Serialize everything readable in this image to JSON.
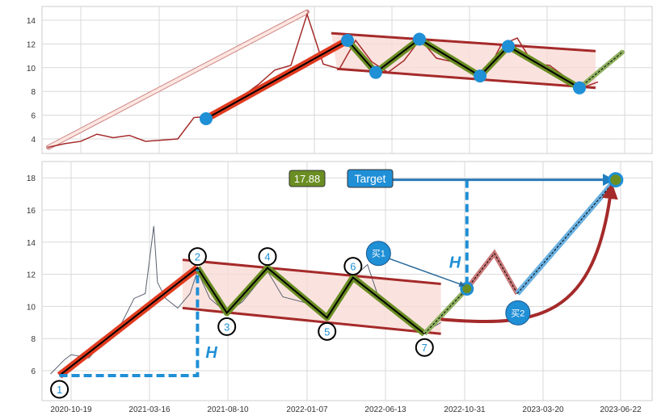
{
  "chart_data": [
    {
      "type": "line",
      "panel": "top",
      "grid": true,
      "yticks": [
        4,
        6,
        8,
        10,
        12,
        14
      ],
      "ylim": [
        2.8,
        15.2
      ],
      "x_unit": "step",
      "series_color": "#a52a2a",
      "price": [
        3.3,
        3.6,
        3.8,
        4.4,
        4.1,
        4.3,
        3.8,
        3.9,
        4.0,
        5.8,
        5.9,
        6.8,
        7.6,
        8.6,
        9.8,
        10.2,
        14.5,
        10.3,
        9.9,
        12.3,
        10.5,
        9.6,
        10.6,
        12.4,
        10.8,
        10.5,
        10.0,
        9.3,
        11.9,
        12.5,
        10.3,
        10.2,
        9.2,
        8.3,
        8.8
      ],
      "impulse_arrow": [
        [
          0,
          3.3
        ],
        [
          16,
          14.7
        ]
      ],
      "impulse_line": [
        [
          9.75,
          5.7
        ],
        [
          18.5,
          12.3
        ]
      ],
      "zigzag": [
        [
          18.5,
          12.3
        ],
        [
          20.25,
          9.6
        ],
        [
          22.95,
          12.4
        ],
        [
          26.7,
          9.3
        ],
        [
          28.45,
          11.8
        ],
        [
          32.85,
          8.3
        ]
      ],
      "projection": [
        [
          32.85,
          8.3
        ],
        [
          35.5,
          11.3
        ]
      ],
      "pivots": [
        [
          9.75,
          5.7
        ],
        [
          18.5,
          12.3
        ],
        [
          20.25,
          9.6
        ],
        [
          22.95,
          12.4
        ],
        [
          26.7,
          9.3
        ],
        [
          28.45,
          11.8
        ],
        [
          32.85,
          8.3
        ]
      ],
      "channel_upper": [
        [
          17.5,
          12.9
        ],
        [
          33.85,
          11.4
        ]
      ],
      "channel_lower": [
        [
          17.85,
          9.9
        ],
        [
          33.85,
          8.3
        ]
      ]
    },
    {
      "type": "line",
      "panel": "bottom",
      "grid": true,
      "xticks": [
        "2020-10-19",
        "2021-03-16",
        "2021-08-10",
        "2022-01-07",
        "2022-06-13",
        "2022-10-31",
        "2023-03-20",
        "2023-06-22"
      ],
      "yticks": [
        6,
        8,
        10,
        12,
        14,
        16,
        18
      ],
      "ylim": [
        4.1,
        19.0
      ],
      "price": [
        [
          "2020-09-10",
          5.8
        ],
        [
          "2020-10-07",
          6.7
        ],
        [
          "2020-10-19",
          7.0
        ],
        [
          "2020-11-22",
          6.8
        ],
        [
          "2020-12-23",
          8.0
        ],
        [
          "2021-01-23",
          9.0
        ],
        [
          "2021-02-15",
          10.5
        ],
        [
          "2021-03-08",
          10.8
        ],
        [
          "2021-03-24",
          15.0
        ],
        [
          "2021-03-31",
          11.5
        ],
        [
          "2021-04-15",
          10.5
        ],
        [
          "2021-05-08",
          9.9
        ],
        [
          "2021-05-31",
          10.8
        ],
        [
          "2021-06-14",
          12.2
        ],
        [
          "2021-07-07",
          10.5
        ],
        [
          "2021-08-08",
          9.6
        ],
        [
          "2021-09-07",
          10.3
        ],
        [
          "2021-10-24",
          12.2
        ],
        [
          "2021-11-22",
          10.6
        ],
        [
          "2022-01-07",
          10.2
        ],
        [
          "2022-02-16",
          9.3
        ],
        [
          "2022-04-09",
          11.8
        ],
        [
          "2022-05-08",
          12.6
        ],
        [
          "2022-06-02",
          10.3
        ],
        [
          "2022-07-02",
          9.8
        ],
        [
          "2022-07-31",
          8.9
        ],
        [
          "2022-08-21",
          8.4
        ],
        [
          "2022-09-19",
          9.0
        ]
      ],
      "pivots": [
        {
          "label": "1",
          "date": "2020-09-27",
          "value": 5.7,
          "pos": "below"
        },
        {
          "label": "2",
          "date": "2021-06-14",
          "value": 12.4,
          "pos": "above"
        },
        {
          "label": "3",
          "date": "2021-08-08",
          "value": 9.6,
          "pos": "below"
        },
        {
          "label": "4",
          "date": "2021-10-24",
          "value": 12.4,
          "pos": "above"
        },
        {
          "label": "5",
          "date": "2022-02-16",
          "value": 9.3,
          "pos": "below"
        },
        {
          "label": "6",
          "date": "2022-04-09",
          "value": 11.8,
          "pos": "above"
        },
        {
          "label": "7",
          "date": "2022-08-21",
          "value": 8.3,
          "pos": "below"
        }
      ],
      "breakout": [
        [
          "2022-08-21",
          8.3
        ],
        [
          "2022-11-04",
          11.1
        ]
      ],
      "retest": [
        [
          "2022-11-04",
          11.1
        ],
        [
          "2022-12-23",
          13.3
        ],
        [
          "2023-02-02",
          10.8
        ]
      ],
      "target_line": [
        [
          "2023-02-02",
          10.8
        ],
        [
          "2023-06-16",
          17.88
        ]
      ],
      "curve": [
        [
          "2022-09-19",
          9.2
        ],
        [
          "2023-06-11",
          17.5
        ]
      ],
      "channel_upper": [
        [
          "2021-05-17",
          12.9
        ],
        [
          "2022-09-19",
          11.4
        ]
      ],
      "channel_lower": [
        [
          "2021-05-17",
          9.9
        ],
        [
          "2022-09-19",
          8.3
        ]
      ],
      "height_left": {
        "from": [
          "2020-09-27",
          5.7
        ],
        "corner": [
          "2021-06-14",
          5.7
        ],
        "to": [
          "2021-06-14",
          12.3
        ],
        "label": "H"
      },
      "height_right": {
        "date": "2022-11-04",
        "from": 17.88,
        "to": 11.2,
        "label": "H"
      },
      "target_value": "17.88",
      "target_label": "Target",
      "target_arrow": [
        [
          "2022-06-26",
          17.88
        ],
        [
          "2023-06-16",
          17.88
        ]
      ],
      "buy1": {
        "label": "买1",
        "date": "2022-05-30",
        "value": 13.3,
        "points_to": [
          "2022-10-30",
          11.3
        ]
      },
      "buy2": {
        "label": "买2",
        "date": "2023-02-03",
        "value": 9.6
      },
      "colors": {
        "price": "#5a6070",
        "impulse": "#e03a1e",
        "zigzag": "#6b8e23",
        "channel": "#a52a2a",
        "fill": "#f9dcd6",
        "blue": "#1f8fd6",
        "retest": "#c06060"
      }
    }
  ]
}
